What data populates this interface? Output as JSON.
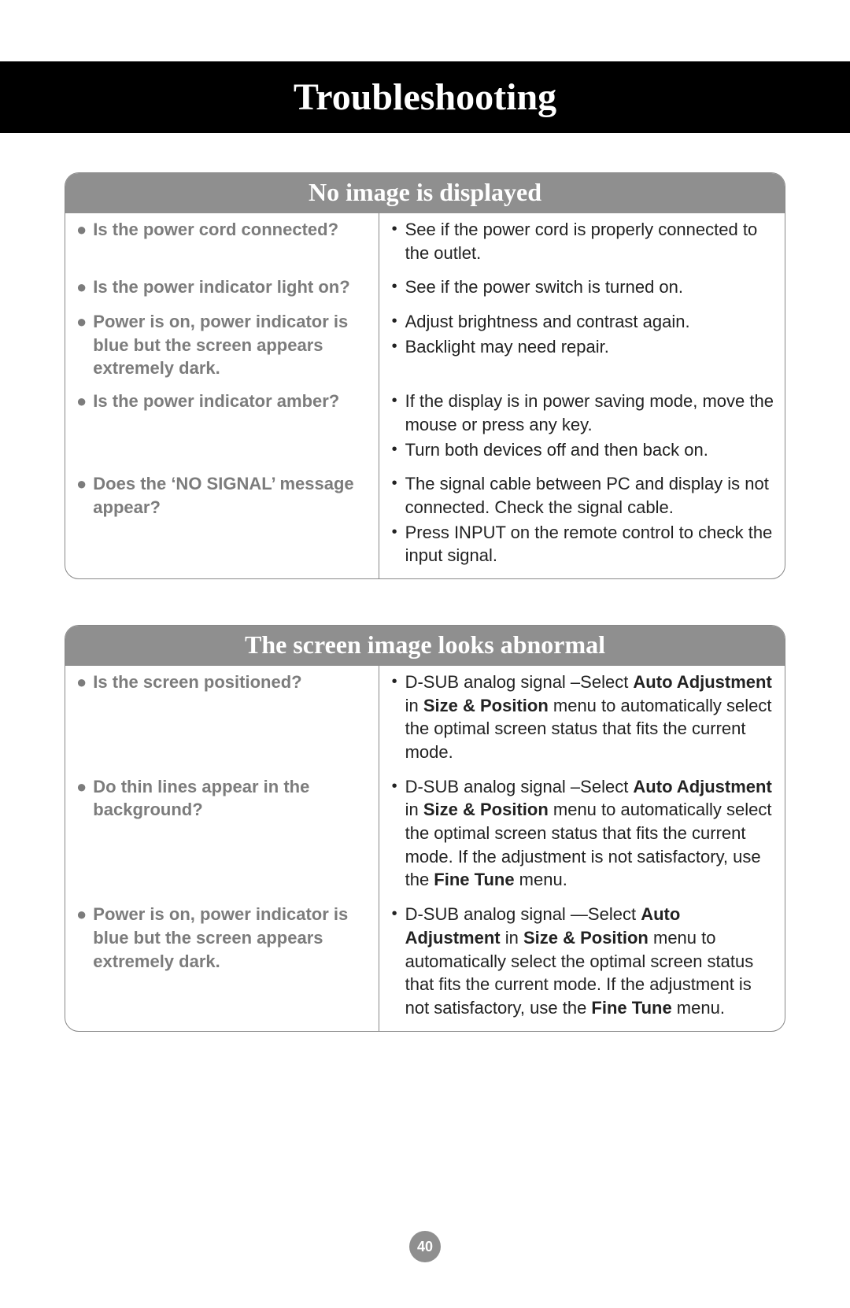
{
  "title": "Troubleshooting",
  "page_number": "40",
  "colors": {
    "title_bg": "#000000",
    "title_fg": "#ffffff",
    "header_bg": "#8f8f8f",
    "header_fg": "#ffffff",
    "border": "#888888",
    "question_text": "#7c7c7c",
    "answer_text": "#222222",
    "page_bg": "#ffffff"
  },
  "typography": {
    "title_font": "Georgia, serif",
    "title_size_pt": 36,
    "header_size_pt": 24,
    "body_size_pt": 16,
    "body_font": "Arial, sans-serif"
  },
  "sections": [
    {
      "title": "No image is displayed",
      "rows": [
        {
          "question": "Is the power cord connected?",
          "answers": [
            {
              "text": "See if the power cord is properly connected to the outlet."
            }
          ]
        },
        {
          "question": "Is the power indicator light on?",
          "answers": [
            {
              "text": "See if the power switch is turned on."
            }
          ]
        },
        {
          "question": "Power is on, power indicator is blue but the screen appears extremely dark.",
          "answers": [
            {
              "text": "Adjust brightness and contrast again."
            },
            {
              "text": "Backlight may need repair."
            }
          ]
        },
        {
          "question": "Is the power indicator amber?",
          "answers": [
            {
              "text": "If the display is in power saving mode, move the mouse or press any key."
            },
            {
              "text": "Turn both devices off and then back on."
            }
          ]
        },
        {
          "question": "Does the ‘NO SIGNAL’ message appear?",
          "answers": [
            {
              "text": "The signal cable between PC and display is not connected. Check the signal cable."
            },
            {
              "text": "Press INPUT on the remote control to check the input signal."
            }
          ]
        }
      ]
    },
    {
      "title": "The screen image looks abnormal",
      "rows": [
        {
          "question": "Is the screen positioned?",
          "answers": [
            {
              "html": "D-SUB analog signal –Select <b>Auto Adjustment</b> in <b>Size & Position</b> menu to automatically select the optimal screen status that fits the current mode."
            }
          ]
        },
        {
          "question": "Do thin lines appear in the background?",
          "answers": [
            {
              "html": "D-SUB analog signal –Select <b>Auto Adjustment</b> in <b>Size & Position</b> menu to automatically select the optimal screen status that fits the current mode. If the adjustment is not satisfactory, use the <b>Fine Tune</b> menu."
            }
          ]
        },
        {
          "question": "Power is on, power indicator is blue but the screen appears extremely dark.",
          "answers": [
            {
              "html": "D-SUB analog signal —Select <b>Auto Adjustment</b> in <b>Size & Position</b> menu to automatically select the optimal screen status that fits the current mode. If the adjustment is not satisfactory, use the <b>Fine Tune</b> menu."
            }
          ]
        }
      ]
    }
  ]
}
